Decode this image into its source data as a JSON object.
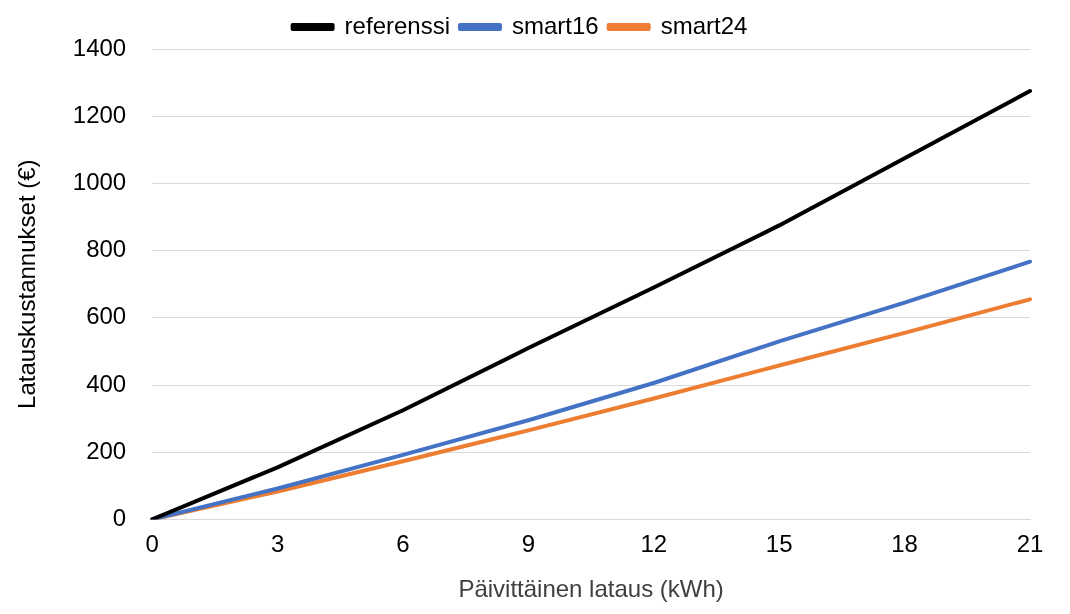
{
  "chart_data": {
    "type": "line",
    "xlabel": "Päivittäinen lataus (kWh)",
    "ylabel": "Latauskustannukset (€)",
    "categories": [
      "0",
      "3",
      "6",
      "9",
      "12",
      "15",
      "18",
      "21"
    ],
    "series": [
      {
        "name": "referenssi",
        "color": "#000000",
        "values": [
          0,
          155,
          325,
          510,
          690,
          875,
          1075,
          1275
        ]
      },
      {
        "name": "smart16",
        "color": "#4472c4",
        "values": [
          0,
          92,
          192,
          295,
          406,
          530,
          645,
          767
        ]
      },
      {
        "name": "smart24",
        "color": "#ed7d31",
        "values": [
          0,
          83,
          173,
          265,
          360,
          458,
          555,
          655
        ]
      }
    ],
    "ylim": [
      0,
      1400
    ],
    "yticks": [
      0,
      200,
      400,
      600,
      800,
      1000,
      1200,
      1400
    ],
    "grid": "y",
    "legend": "top",
    "marker": "none",
    "line_style": "solid"
  }
}
